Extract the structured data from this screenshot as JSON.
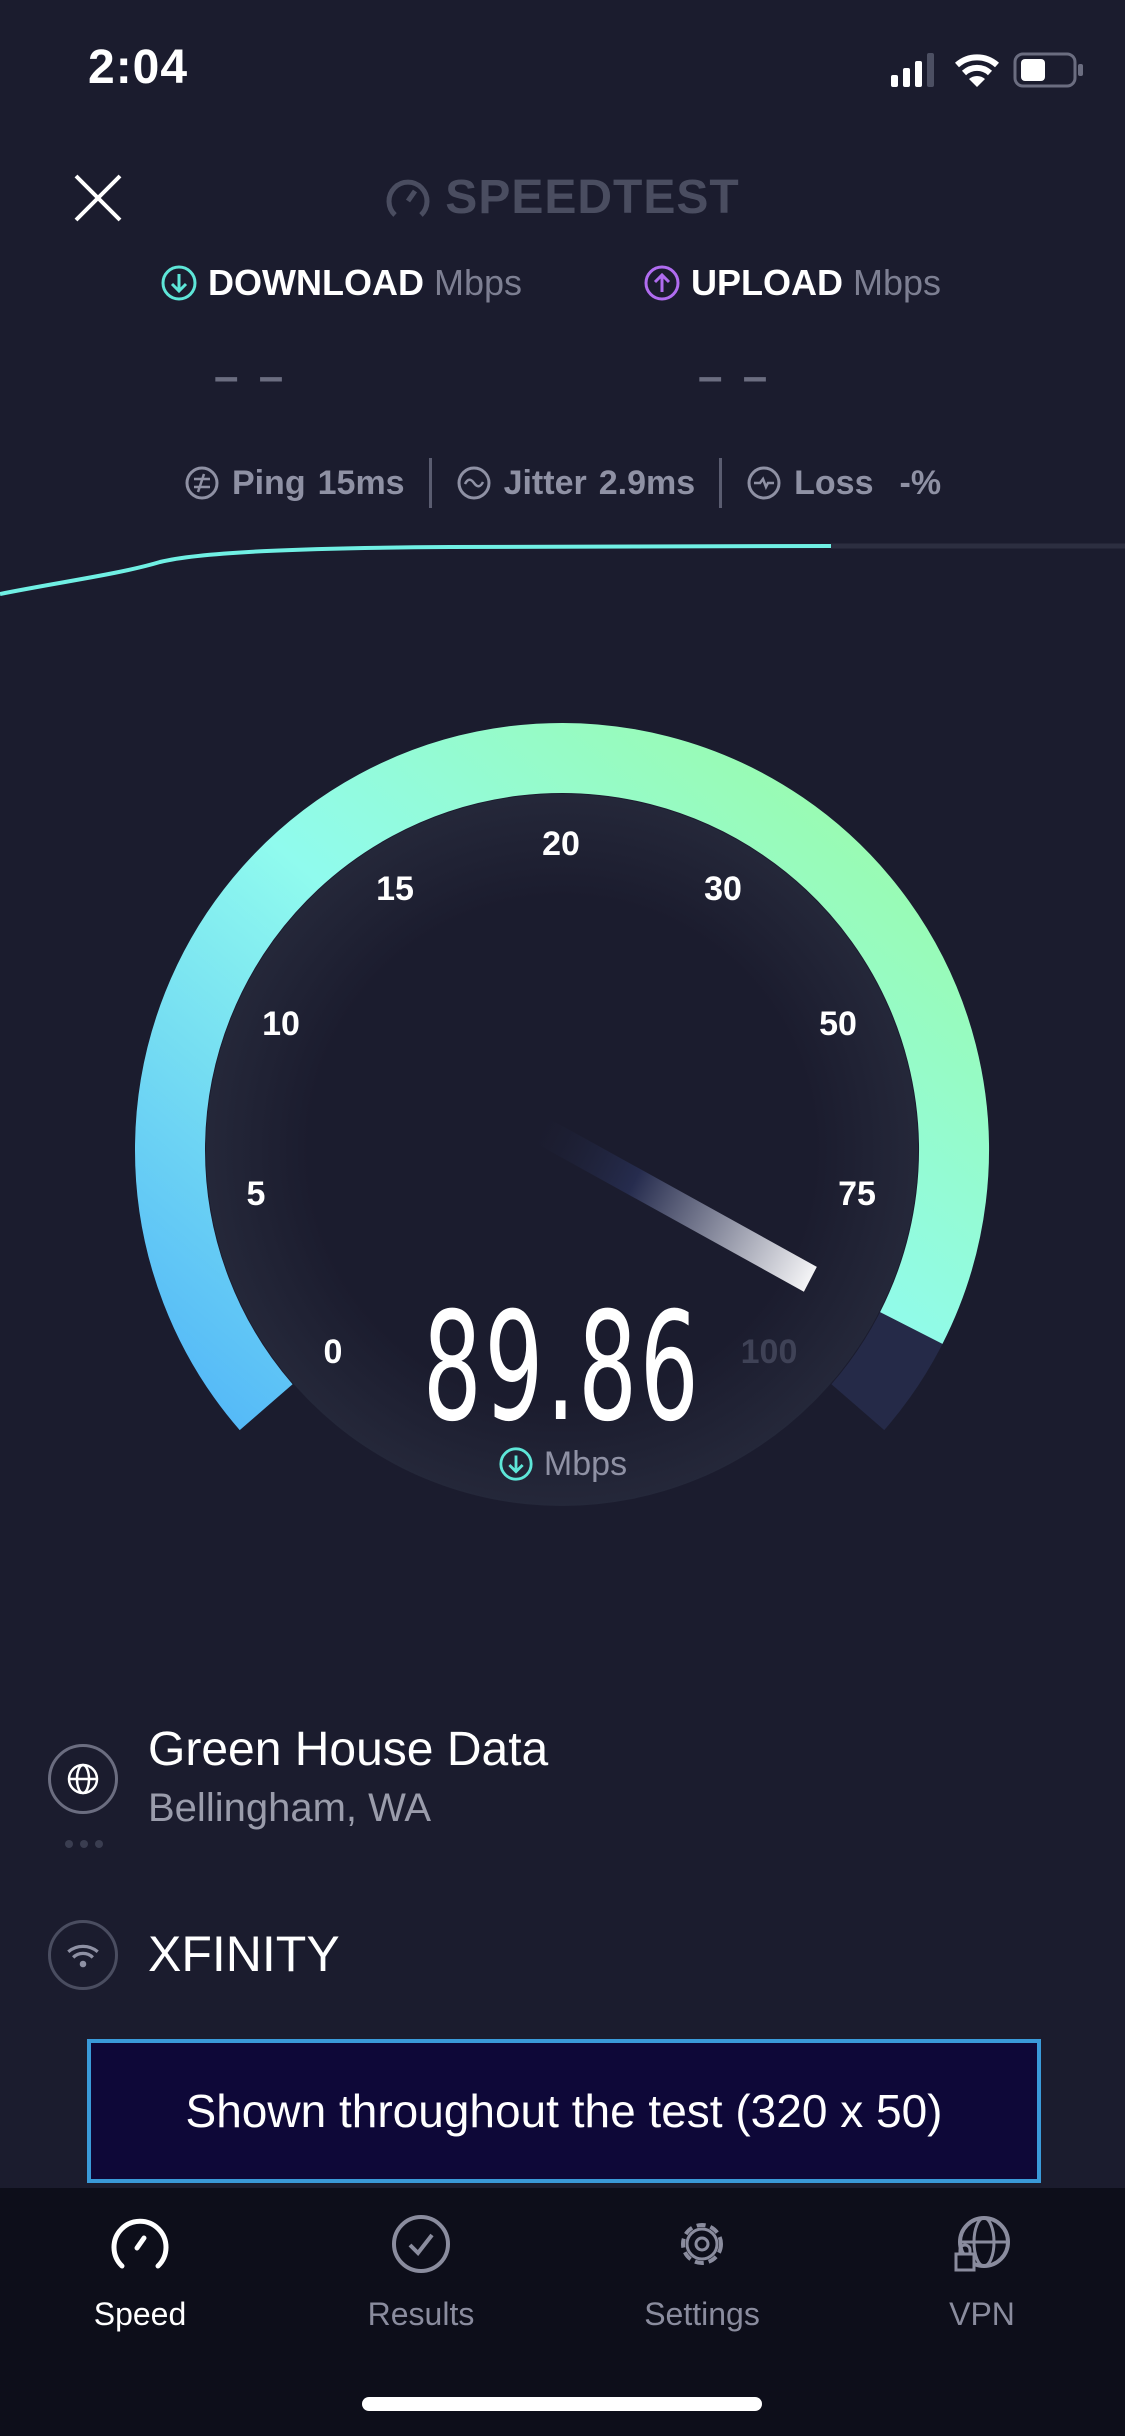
{
  "status_bar": {
    "time": "2:04",
    "signal_icon": "cellular-signal-icon",
    "wifi_icon": "wifi-icon",
    "battery_icon": "battery-icon"
  },
  "header": {
    "close_icon": "close-icon",
    "logo": "SPEEDTEST"
  },
  "download": {
    "label": "DOWNLOAD",
    "unit": "Mbps",
    "value": "– –",
    "color": "#5ee6d8"
  },
  "upload": {
    "label": "UPLOAD",
    "unit": "Mbps",
    "value": "– –",
    "color": "#b06cf0"
  },
  "stats": {
    "ping": {
      "label": "Ping",
      "value": "15",
      "unit": "ms"
    },
    "jitter": {
      "label": "Jitter",
      "value": "2.9",
      "unit": "ms"
    },
    "loss": {
      "label": "Loss",
      "value": "-",
      "unit": "%"
    }
  },
  "gauge": {
    "ticks": [
      "0",
      "5",
      "10",
      "15",
      "20",
      "30",
      "50",
      "75",
      "100"
    ],
    "value": "89.86",
    "unit": "Mbps",
    "gradient_start": "#52b6f8",
    "gradient_mid": "#90fbee",
    "gradient_end": "#9cfba0"
  },
  "server": {
    "name": "Green House Data",
    "location": "Bellingham, WA"
  },
  "isp": {
    "name": "XFINITY"
  },
  "ad": {
    "text": "Shown throughout the test (320 x 50)"
  },
  "tabs": [
    {
      "label": "Speed",
      "icon": "speedometer-icon",
      "active": true
    },
    {
      "label": "Results",
      "icon": "checkmark-circle-icon"
    },
    {
      "label": "Settings",
      "icon": "gear-icon"
    },
    {
      "label": "VPN",
      "icon": "globe-lock-icon"
    }
  ]
}
